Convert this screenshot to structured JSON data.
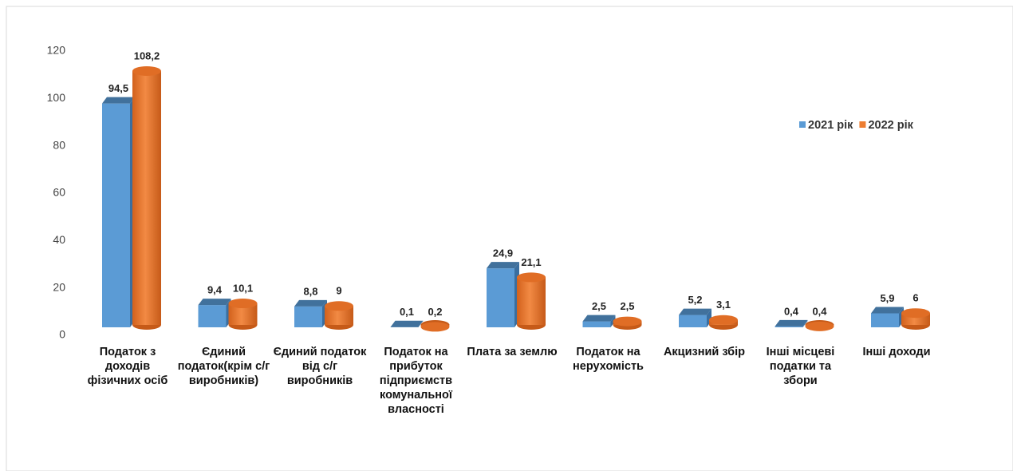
{
  "chart_data": {
    "type": "bar3d",
    "categories": [
      "Податок з доходів фізичних осіб",
      "Єдиний податок(крім с/г виробників)",
      "Єдиний податок від с/г виробників",
      "Податок на прибуток підприємств комунальної власності",
      "Плата за землю",
      "Податок на нерухомість",
      "Акцизний збір",
      "Інші місцеві податки та збори",
      "Інші доходи"
    ],
    "series": [
      {
        "name": "2021 рік",
        "color": "#5b9bd5",
        "values": [
          94.5,
          9.4,
          8.8,
          0.1,
          24.9,
          2.5,
          5.2,
          0.4,
          5.9
        ],
        "value_labels": [
          "94,5",
          "9,4",
          "8,8",
          "0,1",
          "24,9",
          "2,5",
          "5,2",
          "0,4",
          "5,9"
        ]
      },
      {
        "name": "2022 рік",
        "color": "#ed7d31",
        "values": [
          108.2,
          10.1,
          9,
          0.2,
          21.1,
          2.5,
          3.1,
          0.4,
          6
        ],
        "value_labels": [
          "108,2",
          "10,1",
          "9",
          "0,2",
          "21,1",
          "2,5",
          "3,1",
          "0,4",
          "6"
        ]
      }
    ],
    "ylim": [
      0,
      120
    ],
    "yticks": [
      0,
      20,
      40,
      60,
      80,
      100,
      120
    ],
    "legend": "right"
  }
}
